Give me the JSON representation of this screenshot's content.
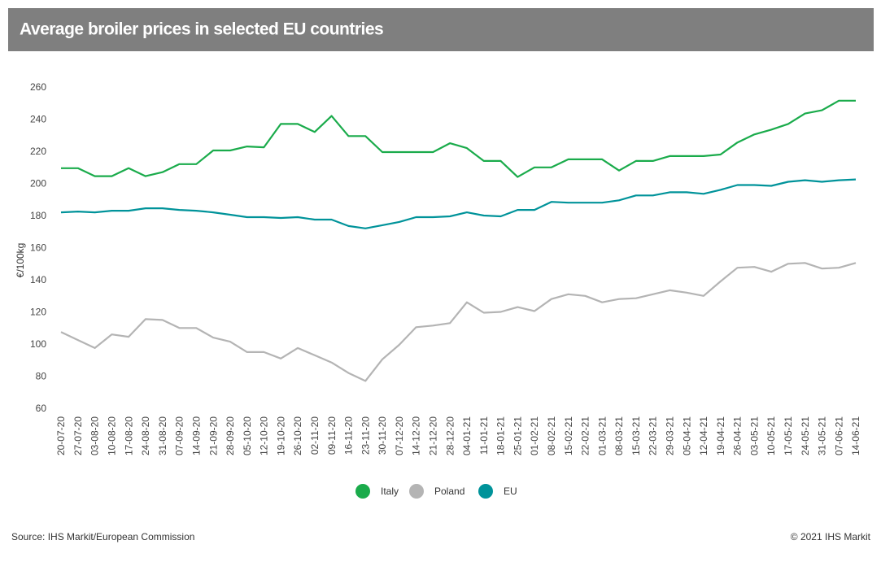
{
  "chart_data": {
    "type": "line",
    "title": "Average broiler prices in selected EU countries",
    "y_label": "€/100kg",
    "source": "Source: IHS Markit/European Commission",
    "copyright": "© 2021 IHS Markit",
    "categories": [
      "20-07-20",
      "27-07-20",
      "03-08-20",
      "10-08-20",
      "17-08-20",
      "24-08-20",
      "31-08-20",
      "07-09-20",
      "14-09-20",
      "21-09-20",
      "28-09-20",
      "05-10-20",
      "12-10-20",
      "19-10-20",
      "26-10-20",
      "02-11-20",
      "09-11-20",
      "16-11-20",
      "23-11-20",
      "30-11-20",
      "07-12-20",
      "14-12-20",
      "21-12-20",
      "28-12-20",
      "04-01-21",
      "11-01-21",
      "18-01-21",
      "25-01-21",
      "01-02-21",
      "08-02-21",
      "15-02-21",
      "22-02-21",
      "01-03-21",
      "08-03-21",
      "15-03-21",
      "22-03-21",
      "29-03-21",
      "05-04-21",
      "12-04-21",
      "19-04-21",
      "26-04-21",
      "03-05-21",
      "10-05-21",
      "17-05-21",
      "24-05-21",
      "31-05-21",
      "07-06-21",
      "14-06-21"
    ],
    "series": [
      {
        "name": "Italy",
        "color": "#1aab4b",
        "values": [
          210,
          210,
          205,
          205,
          210,
          205,
          207.5,
          212.5,
          212.5,
          221,
          221,
          223.5,
          223,
          237.5,
          237.5,
          232.5,
          242.5,
          230,
          230,
          220,
          220,
          220,
          220,
          225.5,
          222.5,
          214.5,
          214.5,
          204.5,
          210.5,
          210.5,
          215.5,
          215.5,
          215.5,
          208.5,
          214.5,
          214.5,
          217.5,
          217.5,
          217.5,
          218.5,
          226,
          231,
          234,
          237.5,
          244,
          246,
          252,
          252
        ]
      },
      {
        "name": "Poland",
        "color": "#b4b4b4",
        "values": [
          108,
          103,
          98,
          106.5,
          105,
          116,
          115.5,
          110.5,
          110.5,
          104.5,
          102,
          95.5,
          95.5,
          91.5,
          98,
          93.5,
          89,
          82.5,
          77.5,
          91,
          100,
          111,
          112,
          113.5,
          126.5,
          120,
          120.5,
          123.5,
          121,
          128.5,
          131.5,
          130.5,
          126.5,
          128.5,
          129,
          131.5,
          134,
          132.5,
          130.5,
          139.5,
          148,
          148.5,
          145.5,
          150.5,
          151,
          147.5,
          148,
          151
        ]
      },
      {
        "name": "EU",
        "color": "#00939a",
        "values": [
          182.5,
          183,
          182.5,
          183.5,
          183.5,
          185,
          185,
          184,
          183.5,
          182.5,
          181,
          179.5,
          179.5,
          179,
          179.5,
          178,
          178,
          174,
          172.5,
          174.5,
          176.5,
          179.5,
          179.5,
          180,
          182.5,
          180.5,
          180,
          184,
          184,
          189,
          188.5,
          188.5,
          188.5,
          190,
          193,
          193,
          195,
          195,
          194,
          196.5,
          199.5,
          199.5,
          199,
          201.5,
          202.5,
          201.5,
          202.5,
          203
        ]
      }
    ],
    "ylim": [
      60,
      260
    ],
    "yticks": [
      60,
      80,
      100,
      120,
      140,
      160,
      180,
      200,
      220,
      240,
      260
    ],
    "grid": false
  }
}
